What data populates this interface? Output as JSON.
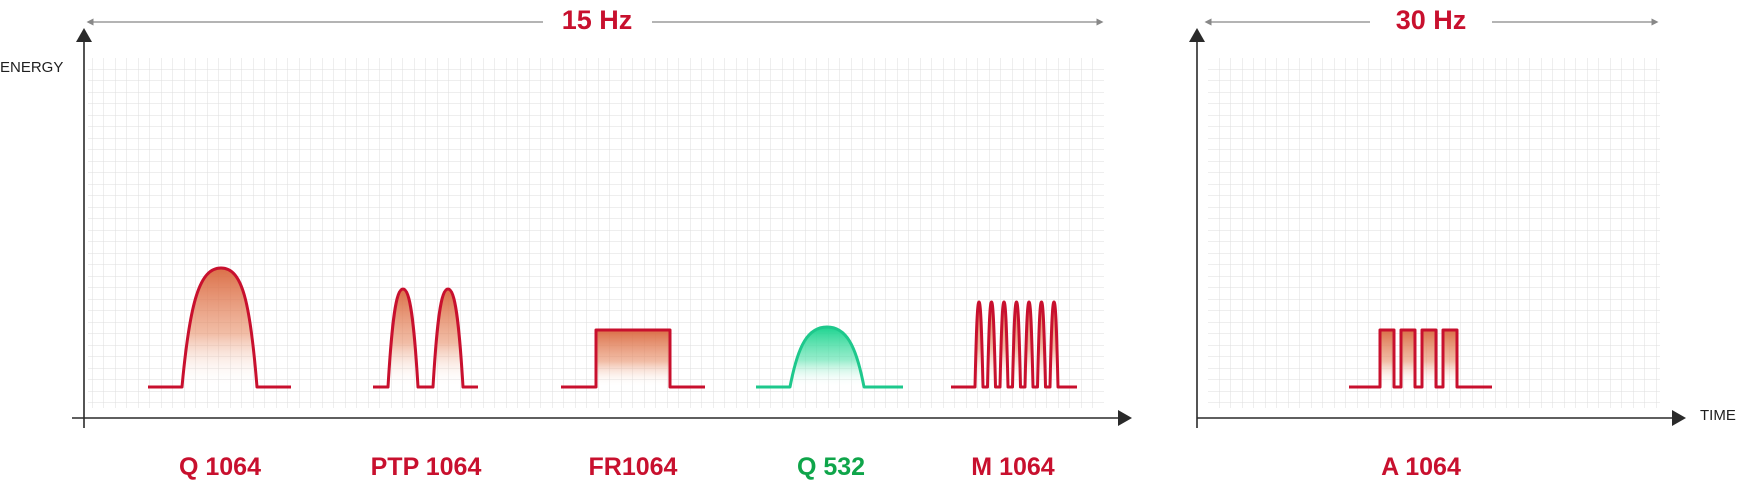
{
  "colors": {
    "red": "#c8102e",
    "green": "#1ec88c",
    "green_label": "#0fa54a",
    "axis": "#2a2a2a",
    "grid": "#dedede"
  },
  "panels": [
    {
      "frequency": "15 Hz",
      "y_axis_label": "ENERGY",
      "modes": [
        {
          "label": "Q 1064",
          "color": "red",
          "shape": "single-pulse",
          "relative_height": 1.0
        },
        {
          "label": "PTP 1064",
          "color": "red",
          "shape": "double-pulse",
          "relative_height": 0.84
        },
        {
          "label": "FR1064",
          "color": "red",
          "shape": "flat-top",
          "relative_height": 0.5
        },
        {
          "label": "Q 532",
          "color": "green",
          "shape": "single-pulse",
          "relative_height": 0.5
        },
        {
          "label": "M 1064",
          "color": "red",
          "shape": "multi-pulse-7",
          "relative_height": 0.73
        }
      ]
    },
    {
      "frequency": "30 Hz",
      "x_axis_label": "TIME",
      "modes": [
        {
          "label": "A 1064",
          "color": "red",
          "shape": "square-pulse-train-4",
          "relative_height": 0.5
        }
      ]
    }
  ]
}
